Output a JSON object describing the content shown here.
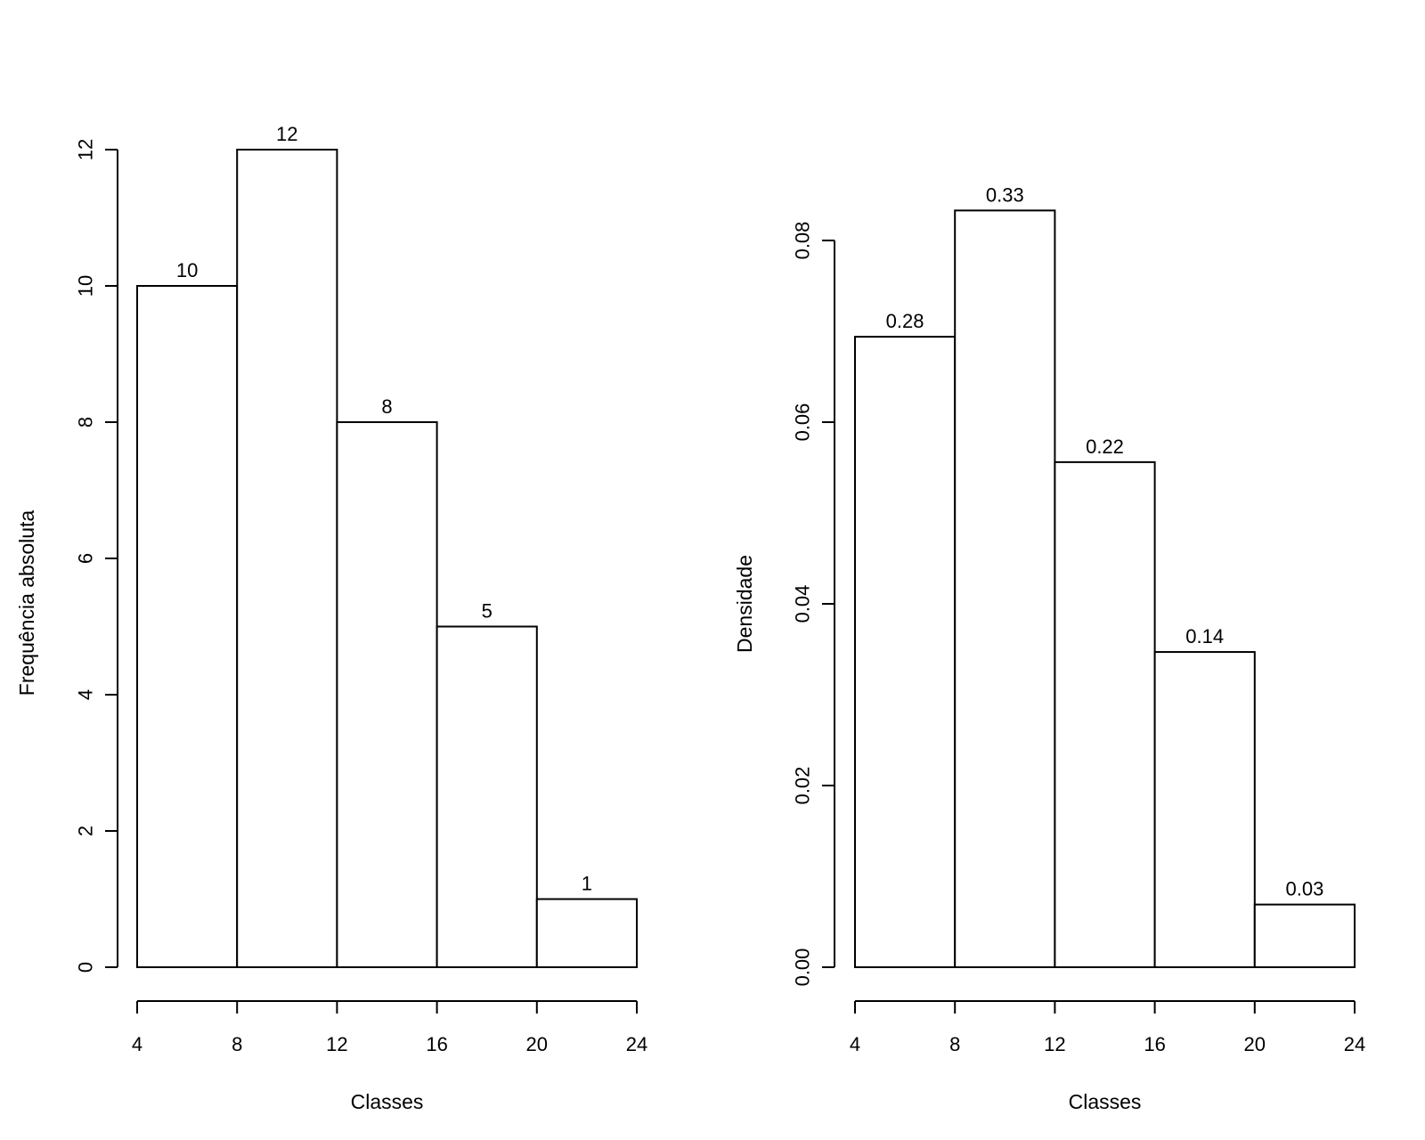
{
  "chart_data": [
    {
      "type": "bar",
      "title": "",
      "xlabel": "Classes",
      "ylabel": "Frequência absoluta",
      "breaks": [
        4,
        8,
        12,
        16,
        20,
        24
      ],
      "x_ticks": [
        "4",
        "8",
        "12",
        "16",
        "20",
        "24"
      ],
      "values": [
        10,
        12,
        8,
        5,
        1
      ],
      "bar_labels": [
        "10",
        "12",
        "8",
        "5",
        "1"
      ],
      "ylim": [
        0,
        12
      ],
      "y_ticks": [
        "0",
        "2",
        "4",
        "6",
        "8",
        "10",
        "12"
      ],
      "grid": false
    },
    {
      "type": "bar",
      "title": "",
      "xlabel": "Classes",
      "ylabel": "Densidade",
      "breaks": [
        4,
        8,
        12,
        16,
        20,
        24
      ],
      "x_ticks": [
        "4",
        "8",
        "12",
        "16",
        "20",
        "24"
      ],
      "values": [
        0.0694,
        0.0833,
        0.0556,
        0.0347,
        0.0069
      ],
      "bar_labels": [
        "0.28",
        "0.33",
        "0.22",
        "0.14",
        "0.03"
      ],
      "ylim": [
        0,
        0.08
      ],
      "y_ticks": [
        "0.00",
        "0.02",
        "0.04",
        "0.06",
        "0.08"
      ],
      "grid": false
    }
  ]
}
